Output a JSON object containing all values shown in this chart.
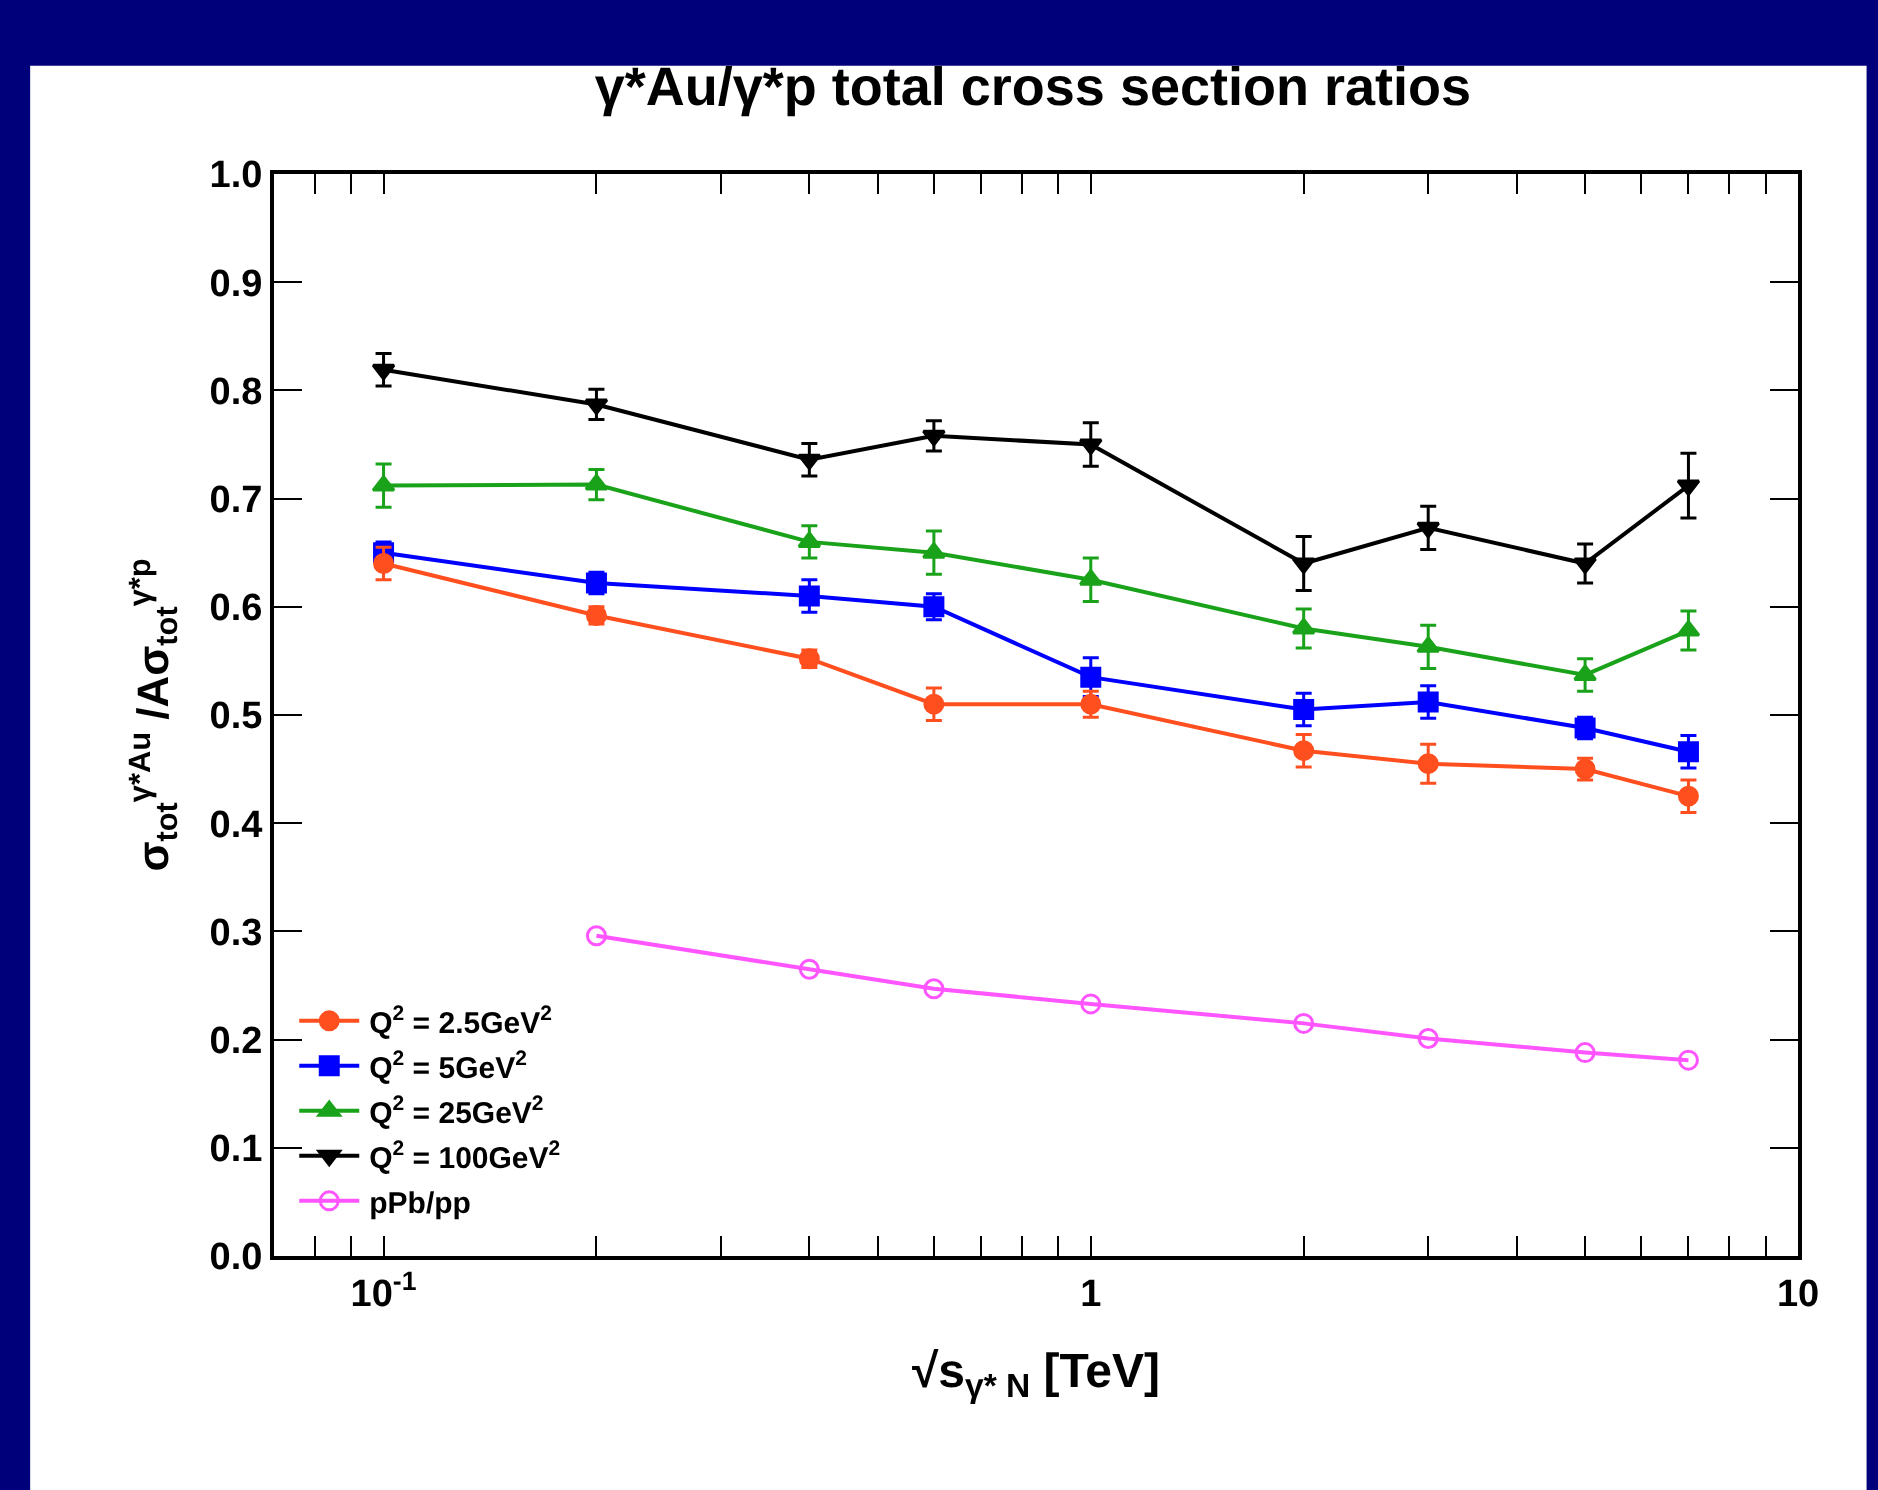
{
  "chart_data": {
    "type": "line",
    "title": "γ*Au/γ*p total cross section ratios",
    "xlabel": "√s$_{γ* N}$ [TeV]",
    "ylabel": "σ$_{tot}$$^{γ*Au}$ /Aσ$_{tot}$$^{γ*p}$",
    "x": [
      0.1,
      0.2,
      0.4,
      0.6,
      1,
      2,
      3,
      5,
      7
    ],
    "series": [
      {
        "name": "Q$^{2}$ = 2.5GeV$^{2}$",
        "color": "#ff4f1f",
        "marker": "circle",
        "values": [
          0.64,
          0.592,
          0.552,
          0.51,
          0.51,
          0.467,
          0.455,
          0.45,
          0.425
        ],
        "errors": [
          0.015,
          0.008,
          0.008,
          0.015,
          0.012,
          0.015,
          0.018,
          0.01,
          0.015
        ]
      },
      {
        "name": "Q$^{2}$ = 5GeV$^{2}$",
        "color": "#0000ff",
        "marker": "square",
        "values": [
          0.65,
          0.622,
          0.61,
          0.6,
          0.535,
          0.505,
          0.512,
          0.488,
          0.466
        ],
        "errors": [
          0.01,
          0.01,
          0.015,
          0.012,
          0.018,
          0.015,
          0.015,
          0.01,
          0.015
        ]
      },
      {
        "name": "Q$^{2}$ = 25GeV$^{2}$",
        "color": "#1aa31a",
        "marker": "triangle",
        "values": [
          0.712,
          0.713,
          0.66,
          0.65,
          0.625,
          0.58,
          0.563,
          0.537,
          0.578
        ],
        "errors": [
          0.02,
          0.014,
          0.015,
          0.02,
          0.02,
          0.018,
          0.02,
          0.015,
          0.018
        ]
      },
      {
        "name": "Q$^{2}$ = 100GeV$^{2}$",
        "color": "#000000",
        "marker": "triangle",
        "values": [
          0.819,
          0.787,
          0.736,
          0.758,
          0.75,
          0.64,
          0.673,
          0.64,
          0.712
        ],
        "errors": [
          0.015,
          0.014,
          0.015,
          0.014,
          0.02,
          0.025,
          0.02,
          0.018,
          0.03
        ]
      },
      {
        "name": "pPb/pp",
        "color": "#ff55ff",
        "marker": "circle-open",
        "x": [
          0.2,
          0.4,
          0.6,
          1,
          2,
          3,
          5,
          7
        ],
        "values": [
          0.296,
          0.265,
          0.247,
          0.233,
          0.215,
          0.201,
          0.188,
          0.181
        ]
      }
    ],
    "log": "x",
    "legend": "bottom left",
    "xlim": [
      0.07,
      10
    ],
    "xticks": [
      {
        "value": 0.07,
        "label": null
      },
      {
        "value": 0.08,
        "label": null
      },
      {
        "value": 0.09,
        "label": null
      },
      {
        "value": 0.1,
        "label": "10$^{-1}$"
      },
      {
        "value": 0.2,
        "label": null
      },
      {
        "value": 0.3,
        "label": null
      },
      {
        "value": 0.4,
        "label": null
      },
      {
        "value": 0.5,
        "label": null
      },
      {
        "value": 0.6,
        "label": null
      },
      {
        "value": 0.7,
        "label": null
      },
      {
        "value": 0.8,
        "label": null
      },
      {
        "value": 0.9,
        "label": null
      },
      1,
      {
        "value": 2,
        "label": null
      },
      {
        "value": 3,
        "label": null
      },
      {
        "value": 4,
        "label": null
      },
      {
        "value": 5,
        "label": null
      },
      {
        "value": 6,
        "label": null
      },
      {
        "value": 7,
        "label": null
      },
      {
        "value": 8,
        "label": null
      },
      {
        "value": 9,
        "label": null
      },
      10
    ],
    "ylim": [
      0,
      1
    ],
    "yticks": [
      {
        "value": 0,
        "label": "0.0"
      },
      0.1,
      0.2,
      0.3,
      0.4,
      0.5,
      0.6,
      0.7,
      0.8,
      0.9,
      {
        "value": 1,
        "label": "1.0"
      }
    ]
  }
}
